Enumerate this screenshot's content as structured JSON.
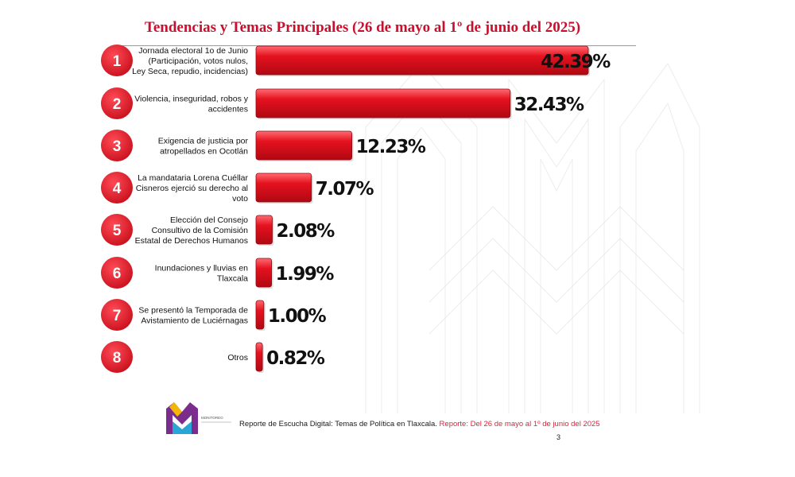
{
  "title": "Tendencias y Temas Principales (26 de mayo al 1º de junio del 2025)",
  "colors": {
    "bar": "#e0101e",
    "bar_highlight": "#ff6a72",
    "badge": "#e41d2c",
    "title": "#c8102e",
    "footer_accent": "#d7263d"
  },
  "chart_data": {
    "type": "bar",
    "orientation": "horizontal",
    "title": "Tendencias y Temas Principales (26 de mayo al 1º de junio del 2025)",
    "ranks": [
      "1",
      "2",
      "3",
      "4",
      "5",
      "6",
      "7",
      "8"
    ],
    "categories": [
      [
        "Jornada electoral 1o de Junio",
        "(Participación, votos nulos,",
        "Ley Seca, repudio, incidencias)"
      ],
      [
        "Violencia, inseguridad, robos y",
        "accidentes"
      ],
      [
        "Exigencia de justicia por",
        "atropellados en Ocotlán"
      ],
      [
        "La mandataria Lorena Cuéllar",
        "Cisneros ejerció su derecho al",
        "voto"
      ],
      [
        "Elección del Consejo",
        "Consultivo de la Comisión",
        "Estatal de Derechos Humanos"
      ],
      [
        "Inundaciones y lluvias en",
        "Tlaxcala"
      ],
      [
        "Se presentó la Temporada de",
        "Avistamiento de Luciérnagas"
      ],
      [
        "Otros"
      ]
    ],
    "values": [
      42.39,
      32.43,
      12.23,
      7.07,
      2.08,
      1.99,
      1.0,
      0.82
    ],
    "value_labels": [
      "42.39%",
      "32.43%",
      "12.23%",
      "7.07%",
      "2.08%",
      "1.99%",
      "1.00%",
      "0.82%"
    ],
    "unit": "%",
    "xlim": [
      0,
      42.39
    ],
    "grid": false,
    "legend": "none"
  },
  "footer": {
    "text": "Reporte de Escucha Digital: Temas de Política en Tlaxcala.",
    "highlight": "Reporte: Del  26 de mayo al 1º de junio del 2025",
    "page": "3"
  },
  "logo": {
    "icon": "m-monogram-logo",
    "text": "MONITOREO"
  }
}
